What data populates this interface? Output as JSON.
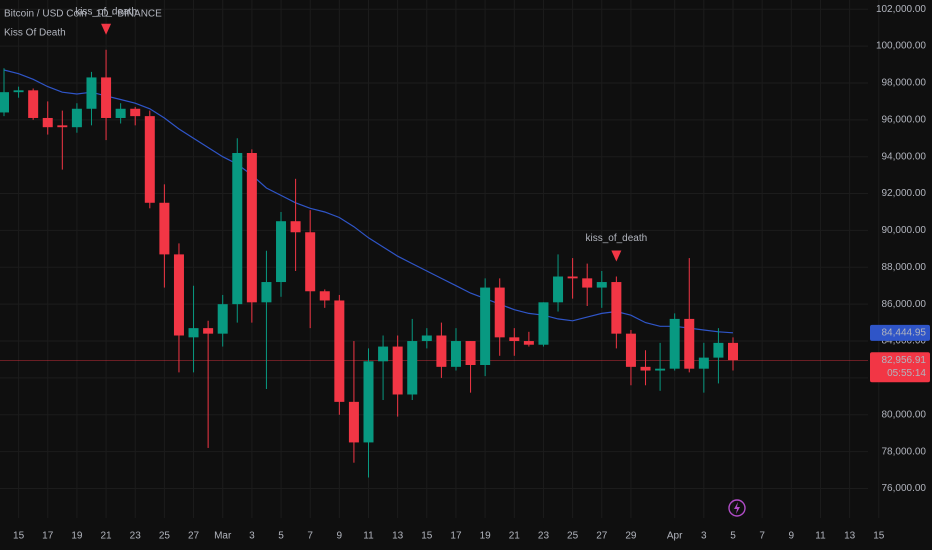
{
  "chart_data": {
    "type": "candlestick",
    "title": "Bitcoin / USD Coin · 1D · BINANCE",
    "indicator": "Kiss Of Death",
    "categories": [
      null,
      "15",
      null,
      "17",
      null,
      "19",
      null,
      "21",
      null,
      "23",
      null,
      "25",
      null,
      "27",
      null,
      "Mar",
      null,
      "3",
      null,
      "5",
      null,
      "7",
      null,
      "9",
      null,
      "11",
      null,
      "13",
      null,
      "15",
      null,
      "17",
      null,
      "19",
      null,
      "21",
      null,
      "23",
      null,
      "25",
      null,
      "27",
      null,
      "29",
      null,
      null,
      "Apr",
      null,
      "3",
      null,
      "5",
      null,
      "7",
      null,
      "9",
      null,
      "11",
      null,
      "13",
      null,
      "15"
    ],
    "open": [
      96400,
      97500,
      97600,
      96100,
      95700,
      95600,
      96600,
      98300,
      96100,
      96600,
      96200,
      91500,
      88700,
      84200,
      84700,
      84400,
      86000,
      94200,
      86100,
      87200,
      90500,
      89900,
      86700,
      86200,
      80700,
      78500,
      82900,
      83700,
      81100,
      84000,
      84300,
      82600,
      84000,
      82700,
      86900,
      84200,
      84000,
      83800,
      86100,
      87500,
      87400,
      86900,
      87200,
      84400,
      82600,
      82400,
      82500,
      85200,
      82500,
      83100,
      83900,
      null,
      null,
      null,
      null,
      null,
      null,
      null,
      null,
      null,
      null
    ],
    "high": [
      98800,
      97800,
      97700,
      97000,
      96500,
      96900,
      98600,
      99800,
      96900,
      96700,
      96500,
      92500,
      89300,
      87000,
      85100,
      86500,
      95000,
      94400,
      88900,
      91000,
      92800,
      91100,
      86800,
      86500,
      84000,
      83600,
      84300,
      84300,
      85200,
      84700,
      85000,
      84700,
      84000,
      87400,
      87400,
      84700,
      84500,
      86100,
      88700,
      88500,
      88200,
      87800,
      87500,
      84600,
      83500,
      83900,
      85500,
      88500,
      83900,
      84700,
      84200,
      null,
      null,
      null,
      null,
      null,
      null,
      null,
      null,
      null,
      null
    ],
    "low": [
      96200,
      97200,
      96000,
      95200,
      93300,
      95300,
      95700,
      94900,
      95800,
      95700,
      91200,
      86900,
      82300,
      82300,
      78200,
      83700,
      85000,
      85000,
      81400,
      86400,
      87800,
      84700,
      85800,
      80000,
      77400,
      76600,
      80800,
      79900,
      80800,
      83600,
      82000,
      82400,
      81200,
      82100,
      83200,
      83200,
      83700,
      83700,
      85600,
      86300,
      85900,
      85800,
      83600,
      81600,
      81600,
      81300,
      82400,
      82300,
      81200,
      81700,
      82400,
      null,
      null,
      null,
      null,
      null,
      null,
      null,
      null,
      null,
      null
    ],
    "close": [
      97500,
      97600,
      96100,
      95600,
      95600,
      96600,
      98300,
      96100,
      96600,
      96200,
      91500,
      88700,
      84300,
      84700,
      84400,
      86000,
      94200,
      86100,
      87200,
      90500,
      89900,
      86700,
      86200,
      80700,
      78500,
      82900,
      83700,
      81100,
      84000,
      84300,
      82600,
      84000,
      82700,
      86900,
      84200,
      84000,
      83800,
      86100,
      87500,
      87400,
      86900,
      87200,
      84400,
      82600,
      82400,
      82500,
      85200,
      82500,
      83100,
      83900,
      82956.91,
      null,
      null,
      null,
      null,
      null,
      null,
      null,
      null,
      null,
      null
    ],
    "up_color": "#089981",
    "down_color": "#f23645",
    "ma": {
      "color": "#2f55c8",
      "last_label": "84,444.95",
      "values": [
        98700,
        98500,
        98200,
        97800,
        97500,
        97400,
        97500,
        97300,
        97100,
        96900,
        96600,
        96100,
        95500,
        95000,
        94500,
        94000,
        93600,
        93000,
        92300,
        91900,
        91500,
        91200,
        91000,
        90700,
        90200,
        89600,
        89100,
        88600,
        88200,
        87800,
        87400,
        87000,
        86600,
        86300,
        86000,
        85700,
        85500,
        85400,
        85200,
        85100,
        85300,
        85500,
        85600,
        85400,
        85000,
        84800,
        84800,
        84700,
        84600,
        84500,
        84444.95,
        null,
        null,
        null,
        null,
        null,
        null,
        null,
        null,
        null,
        null
      ]
    },
    "signals": [
      null,
      null,
      null,
      null,
      null,
      null,
      null,
      "kiss_of_death",
      null,
      null,
      null,
      null,
      null,
      null,
      null,
      null,
      null,
      null,
      null,
      null,
      null,
      null,
      null,
      null,
      null,
      null,
      null,
      null,
      null,
      null,
      null,
      null,
      null,
      null,
      null,
      null,
      null,
      null,
      null,
      null,
      null,
      null,
      "kiss_of_death",
      null,
      null,
      null,
      null,
      null,
      null,
      null,
      null,
      null,
      null,
      null,
      null,
      null,
      null,
      null,
      null,
      null,
      null
    ],
    "last_price": {
      "value": 82956.91,
      "label": "82,956.91",
      "countdown": "05:55:14"
    },
    "ylim": [
      74400,
      102500
    ],
    "yticks": [
      {
        "value": 76000,
        "label": "76,000.00"
      },
      {
        "value": 78000,
        "label": "78,000.00"
      },
      {
        "value": 80000,
        "label": "80,000.00"
      },
      {
        "value": 82000,
        "label": "82,000.00"
      },
      {
        "value": 84000,
        "label": "84,000.00"
      },
      {
        "value": 86000,
        "label": "86,000.00"
      },
      {
        "value": 88000,
        "label": "88,000.00"
      },
      {
        "value": 90000,
        "label": "90,000.00"
      },
      {
        "value": 92000,
        "label": "92,000.00"
      },
      {
        "value": 94000,
        "label": "94,000.00"
      },
      {
        "value": 96000,
        "label": "96,000.00"
      },
      {
        "value": 98000,
        "label": "98,000.00"
      },
      {
        "value": 100000,
        "label": "100,000.00"
      },
      {
        "value": 102000,
        "label": "102,000.00"
      }
    ],
    "grid": true
  }
}
